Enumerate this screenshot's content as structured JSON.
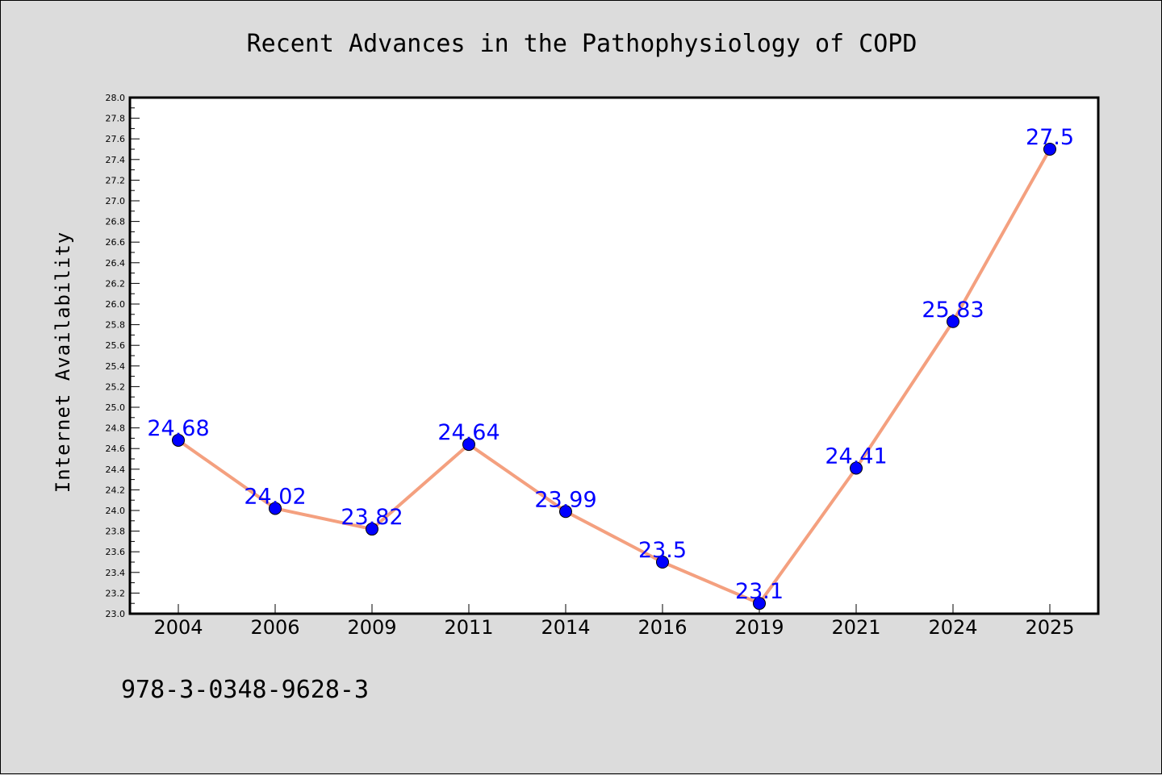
{
  "chart_data": {
    "type": "line",
    "title": "Recent Advances in the Pathophysiology of COPD",
    "xlabel": "",
    "ylabel": "Internet Availability",
    "categories": [
      "2004",
      "2006",
      "2009",
      "2011",
      "2014",
      "2016",
      "2019",
      "2021",
      "2024",
      "2025"
    ],
    "series": [
      {
        "values": [
          24.68,
          24.02,
          23.82,
          24.64,
          23.99,
          23.5,
          23.1,
          24.41,
          25.83,
          27.5
        ],
        "labels": [
          "24.68",
          "24.02",
          "23.82",
          "24.64",
          "23.99",
          "23.5",
          "23.1",
          "24.41",
          "25.83",
          "27.5"
        ]
      }
    ],
    "ylim": [
      23.0,
      28.0
    ],
    "yticks": [
      "23.0",
      "23.2",
      "23.4",
      "23.6",
      "23.8",
      "24.0",
      "24.2",
      "24.4",
      "24.6",
      "24.8",
      "25.0",
      "25.2",
      "25.4",
      "25.6",
      "25.8",
      "26.0",
      "26.2",
      "26.4",
      "26.6",
      "26.8",
      "27.0",
      "27.2",
      "27.4",
      "27.6",
      "27.8",
      "28.0"
    ],
    "grid": false,
    "line_color": "#f4a07f",
    "marker_color": "#0000ff",
    "label_color": "#0000ff"
  },
  "footnote": "978-3-0348-9628-3"
}
